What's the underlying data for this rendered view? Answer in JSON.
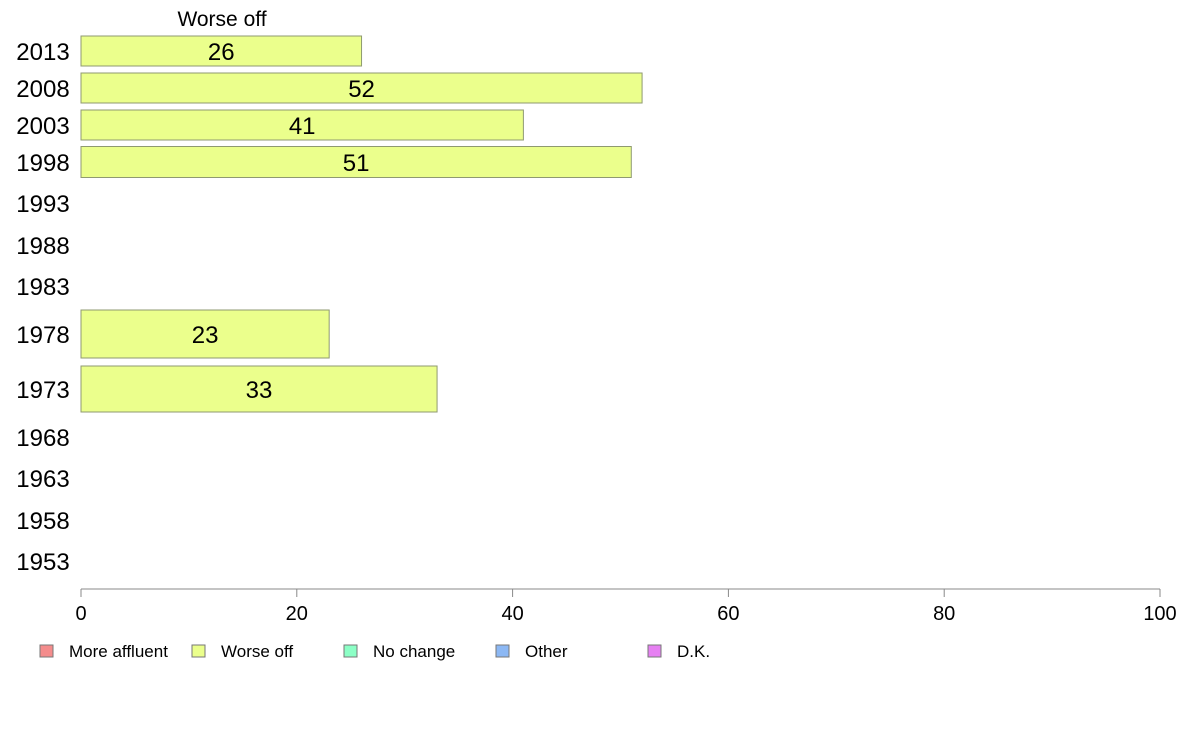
{
  "chart_data": {
    "type": "bar",
    "orientation": "horizontal",
    "title": "Worse off",
    "categories": [
      "2013",
      "2008",
      "2003",
      "1998",
      "1993",
      "1988",
      "1983",
      "1978",
      "1973",
      "1968",
      "1963",
      "1958",
      "1953"
    ],
    "series": [
      {
        "name": "Worse off",
        "values": [
          26,
          52,
          41,
          51,
          null,
          null,
          null,
          23,
          33,
          null,
          null,
          null,
          null
        ]
      }
    ],
    "xlim": [
      0,
      100
    ],
    "xticks": [
      0,
      20,
      40,
      60,
      80,
      100
    ],
    "grid": false,
    "legend_position": "bottom-left",
    "legend": [
      {
        "label": "More affluent",
        "color": "#f48c8c"
      },
      {
        "label": "Worse off",
        "color": "#ebff8c"
      },
      {
        "label": "No change",
        "color": "#8cffc6"
      },
      {
        "label": "Other",
        "color": "#8cb8f4"
      },
      {
        "label": "D.K.",
        "color": "#e680f2"
      }
    ],
    "bar_color": "#ebff8c"
  }
}
